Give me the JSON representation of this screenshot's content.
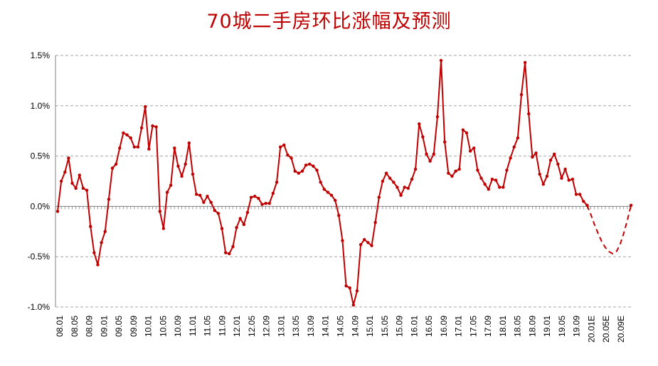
{
  "title": "70城二手房环比涨幅及预测",
  "colors": {
    "series": "#c00000",
    "grid": "#a6a6a6",
    "title": "#c00000"
  },
  "chart_data": {
    "type": "line",
    "title": "70城二手房环比涨幅及预测",
    "xlabel": "",
    "ylabel": "",
    "ylim": [
      -1.0,
      1.5
    ],
    "yticks": [
      "-1.0%",
      "-0.5%",
      "0.0%",
      "0.5%",
      "1.0%",
      "1.5%"
    ],
    "grid": "horizontal dashed",
    "legend": "none",
    "x_tick_labels": [
      "08.01",
      "08.05",
      "08.09",
      "09.01",
      "09.05",
      "09.09",
      "10.01",
      "10.05",
      "10.09",
      "11.01",
      "11.05",
      "11.09",
      "12.01",
      "12.05",
      "12.09",
      "13.01",
      "13.05",
      "13.09",
      "14.01",
      "14.05",
      "14.09",
      "15.01",
      "15.05",
      "15.09",
      "16.01",
      "16.05",
      "16.09",
      "17.01",
      "17.05",
      "17.09",
      "18.01",
      "18.05",
      "18.09",
      "19.01",
      "19.05",
      "19.09",
      "20.01E",
      "20.05E",
      "20.09E"
    ],
    "series": [
      {
        "style": "solid",
        "markers": true,
        "values": [
          -0.05,
          0.25,
          0.34,
          0.48,
          0.23,
          0.18,
          0.31,
          0.18,
          0.16,
          -0.2,
          -0.46,
          -0.58,
          -0.36,
          -0.25,
          0.07,
          0.38,
          0.42,
          0.58,
          0.73,
          0.71,
          0.68,
          0.59,
          0.59,
          0.78,
          0.99,
          0.57,
          0.8,
          0.79,
          -0.05,
          -0.22,
          0.14,
          0.21,
          0.58,
          0.4,
          0.3,
          0.42,
          0.63,
          0.32,
          0.12,
          0.11,
          0.04,
          0.1,
          0.04,
          -0.04,
          -0.07,
          -0.22,
          -0.46,
          -0.47,
          -0.4,
          -0.21,
          -0.12,
          -0.18,
          -0.06,
          0.09,
          0.1,
          0.08,
          0.02,
          0.03,
          0.03,
          0.13,
          0.24,
          0.59,
          0.61,
          0.51,
          0.48,
          0.35,
          0.33,
          0.35,
          0.41,
          0.42,
          0.4,
          0.36,
          0.24,
          0.17,
          0.14,
          0.11,
          0.06,
          -0.09,
          -0.34,
          -0.79,
          -0.81,
          -0.98,
          -0.84,
          -0.38,
          -0.33,
          -0.36,
          -0.39,
          -0.16,
          0.09,
          0.25,
          0.33,
          0.28,
          0.24,
          0.19,
          0.11,
          0.19,
          0.18,
          0.27,
          0.37,
          0.82,
          0.69,
          0.52,
          0.45,
          0.52,
          0.89,
          1.45,
          0.64,
          0.33,
          0.3,
          0.35,
          0.37,
          0.76,
          0.73,
          0.55,
          0.58,
          0.36,
          0.28,
          0.22,
          0.17,
          0.27,
          0.26,
          0.19,
          0.19,
          0.36,
          0.48,
          0.59,
          0.68,
          1.11,
          1.43,
          0.92,
          0.49,
          0.53,
          0.32,
          0.22,
          0.3,
          0.46,
          0.52,
          0.42,
          0.28,
          0.37,
          0.26,
          0.27,
          0.12,
          0.12,
          0.05,
          0.01
        ]
      },
      {
        "style": "dashed",
        "markers": false,
        "values": [
          0.01,
          -0.08,
          -0.18,
          -0.27,
          -0.35,
          -0.41,
          -0.45,
          -0.47,
          -0.45,
          -0.38,
          -0.27,
          -0.14,
          0.01
        ]
      }
    ]
  }
}
